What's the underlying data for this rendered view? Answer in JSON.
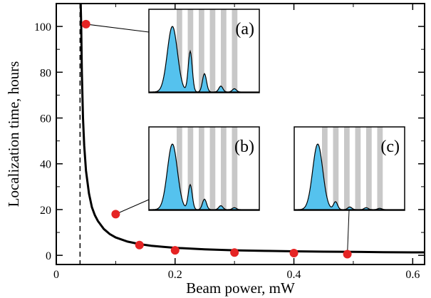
{
  "chart_data": {
    "type": "scatter",
    "xlabel": "Beam power, mW",
    "ylabel": "Localization time, hours",
    "xlim": [
      0,
      0.62
    ],
    "ylim": [
      -4,
      110
    ],
    "grid": false,
    "x_ticks": [
      0,
      0.2,
      0.4,
      0.6
    ],
    "x_tick_labels": [
      "0",
      "0.2",
      "0.4",
      "0.6"
    ],
    "y_ticks": [
      0,
      20,
      40,
      60,
      80,
      100
    ],
    "y_tick_labels": [
      "0",
      "20",
      "40",
      "60",
      "80",
      "100"
    ],
    "threshold_x": 0.04,
    "points": {
      "x": [
        0.05,
        0.1,
        0.14,
        0.2,
        0.3,
        0.4,
        0.49
      ],
      "y": [
        101,
        18,
        4.5,
        2.2,
        1.2,
        1.0,
        0.5
      ]
    },
    "fit_curve": {
      "x": [
        0.041,
        0.042,
        0.043,
        0.045,
        0.047,
        0.05,
        0.055,
        0.06,
        0.065,
        0.07,
        0.08,
        0.09,
        0.1,
        0.12,
        0.14,
        0.16,
        0.18,
        0.2,
        0.25,
        0.3,
        0.35,
        0.4,
        0.45,
        0.5,
        0.55,
        0.6,
        0.62
      ],
      "y": [
        111,
        100,
        80,
        60,
        48,
        37,
        27,
        21,
        17.5,
        15,
        11.5,
        9.3,
        7.8,
        6.0,
        4.9,
        4.2,
        3.7,
        3.3,
        2.6,
        2.2,
        1.95,
        1.75,
        1.6,
        1.5,
        1.4,
        1.3,
        1.28
      ]
    },
    "insets": [
      {
        "label": "(a)",
        "peaks": [
          1.0,
          0.62,
          0.28,
          0.09,
          0.05
        ]
      },
      {
        "label": "(b)",
        "peaks": [
          1.0,
          0.38,
          0.16,
          0.06,
          0.03
        ]
      },
      {
        "label": "(c)",
        "peaks": [
          1.0,
          0.12,
          0.04,
          0.03,
          0.02
        ]
      }
    ],
    "colors": {
      "points": "#e52424",
      "curve": "#000000",
      "fill": "#55c2ee",
      "stripe": "#c8c8c8"
    }
  }
}
